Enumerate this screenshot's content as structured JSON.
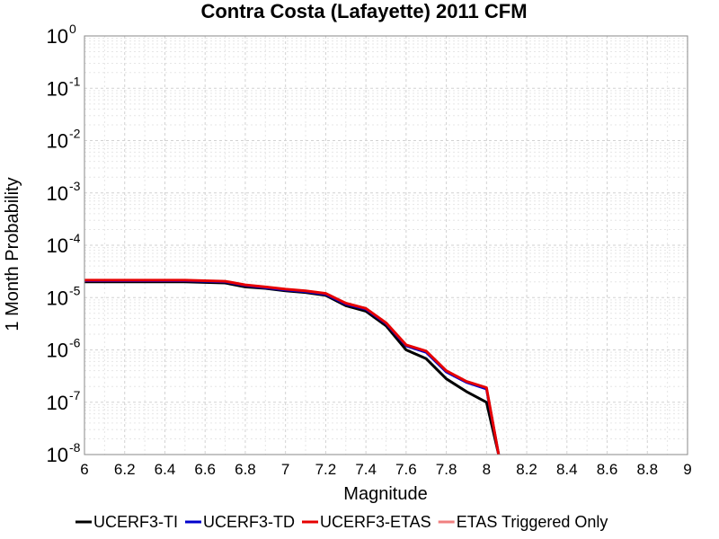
{
  "chart_data": {
    "type": "line",
    "title": "Contra Costa (Lafayette) 2011 CFM",
    "xlabel": "Magnitude",
    "ylabel": "1 Month Probability",
    "xlim": [
      6,
      9
    ],
    "ylim": [
      1e-08,
      1
    ],
    "yscale": "log",
    "grid": true,
    "legend_position": "bottom",
    "x_ticks": [
      "6",
      "6.2",
      "6.4",
      "6.6",
      "6.8",
      "7",
      "7.2",
      "7.4",
      "7.6",
      "7.8",
      "8",
      "8.2",
      "8.4",
      "8.6",
      "8.8",
      "9"
    ],
    "y_ticks": [
      {
        "base": "10",
        "exp": "0"
      },
      {
        "base": "10",
        "exp": "-1"
      },
      {
        "base": "10",
        "exp": "-2"
      },
      {
        "base": "10",
        "exp": "-3"
      },
      {
        "base": "10",
        "exp": "-4"
      },
      {
        "base": "10",
        "exp": "-5"
      },
      {
        "base": "10",
        "exp": "-6"
      },
      {
        "base": "10",
        "exp": "-7"
      },
      {
        "base": "10",
        "exp": "-8"
      }
    ],
    "series": [
      {
        "name": "UCERF3-TI",
        "color": "#000000",
        "x": [
          6.0,
          6.1,
          6.2,
          6.3,
          6.4,
          6.5,
          6.6,
          6.7,
          6.8,
          6.9,
          7.0,
          7.1,
          7.2,
          7.3,
          7.4,
          7.5,
          7.6,
          7.7,
          7.8,
          7.9,
          8.0,
          8.06
        ],
        "y": [
          2e-05,
          2e-05,
          2e-05,
          2e-05,
          2e-05,
          2e-05,
          1.95e-05,
          1.9e-05,
          1.6e-05,
          1.5e-05,
          1.35e-05,
          1.25e-05,
          1.1e-05,
          7e-06,
          5.5e-06,
          2.9e-06,
          1e-06,
          6.8e-07,
          2.8e-07,
          1.6e-07,
          1e-07,
          1e-08
        ]
      },
      {
        "name": "UCERF3-TD",
        "color": "#0000cc",
        "x": [
          6.0,
          6.1,
          6.2,
          6.3,
          6.4,
          6.5,
          6.6,
          6.7,
          6.8,
          6.9,
          7.0,
          7.1,
          7.2,
          7.3,
          7.4,
          7.5,
          7.6,
          7.7,
          7.8,
          7.9,
          8.0,
          8.06
        ],
        "y": [
          2.1e-05,
          2.1e-05,
          2.1e-05,
          2.1e-05,
          2.1e-05,
          2.1e-05,
          2.05e-05,
          2e-05,
          1.7e-05,
          1.55e-05,
          1.4e-05,
          1.3e-05,
          1.15e-05,
          7.5e-06,
          6e-06,
          3.2e-06,
          1.2e-06,
          9e-07,
          3.8e-07,
          2.4e-07,
          1.8e-07,
          1e-08
        ]
      },
      {
        "name": "UCERF3-ETAS",
        "color": "#e60000",
        "x": [
          6.0,
          6.1,
          6.2,
          6.3,
          6.4,
          6.5,
          6.6,
          6.7,
          6.8,
          6.9,
          7.0,
          7.1,
          7.2,
          7.3,
          7.4,
          7.5,
          7.6,
          7.7,
          7.8,
          7.9,
          8.0,
          8.06
        ],
        "y": [
          2.15e-05,
          2.15e-05,
          2.15e-05,
          2.15e-05,
          2.15e-05,
          2.15e-05,
          2.1e-05,
          2.05e-05,
          1.75e-05,
          1.6e-05,
          1.45e-05,
          1.35e-05,
          1.2e-05,
          7.8e-06,
          6.2e-06,
          3.3e-06,
          1.25e-06,
          9.5e-07,
          4e-07,
          2.5e-07,
          1.9e-07,
          1e-08
        ]
      },
      {
        "name": "ETAS Triggered Only",
        "color": "#f08080",
        "x": [],
        "y": []
      }
    ]
  }
}
